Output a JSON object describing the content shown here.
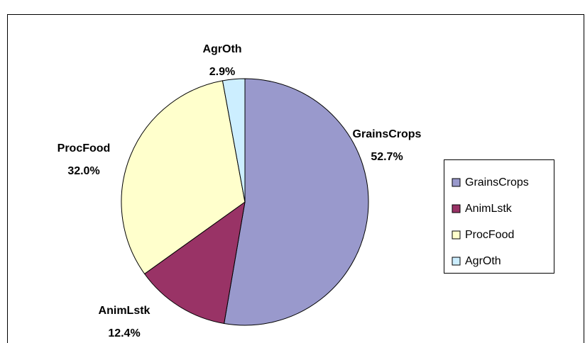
{
  "chart_data": {
    "type": "pie",
    "categories": [
      "GrainsCrops",
      "AnimLstk",
      "ProcFood",
      "AgrOth"
    ],
    "values": [
      52.7,
      12.4,
      32.0,
      2.9
    ],
    "value_labels": [
      "52.7%",
      "12.4%",
      "32.0%",
      "2.9%"
    ],
    "colors": [
      "#9999cc",
      "#993366",
      "#ffffcc",
      "#cceeff"
    ],
    "legend": "right"
  }
}
